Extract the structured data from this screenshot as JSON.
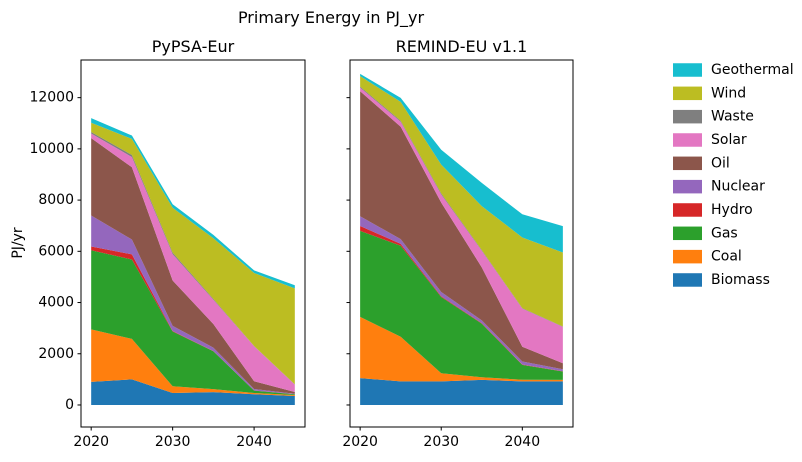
{
  "title": "Primary Energy in PJ_yr",
  "ylabel": "PJ/yr",
  "legend": {
    "entries": [
      {
        "label": "Geothermal",
        "color": "#17becf"
      },
      {
        "label": "Wind",
        "color": "#bcbd22"
      },
      {
        "label": "Waste",
        "color": "#7f7f7f"
      },
      {
        "label": "Solar",
        "color": "#e377c2"
      },
      {
        "label": "Oil",
        "color": "#8c564b"
      },
      {
        "label": "Nuclear",
        "color": "#9467bd"
      },
      {
        "label": "Hydro",
        "color": "#d62728"
      },
      {
        "label": "Gas",
        "color": "#2ca02c"
      },
      {
        "label": "Coal",
        "color": "#ff7f0e"
      },
      {
        "label": "Biomass",
        "color": "#1f77b4"
      }
    ]
  },
  "chart_data": [
    {
      "type": "area",
      "stacked": true,
      "title": "PyPSA-Eur",
      "x": [
        2020,
        2025,
        2030,
        2035,
        2040,
        2045
      ],
      "xlim": [
        2018.75,
        2046.25
      ],
      "ylim": [
        -860,
        13470
      ],
      "xticks": [
        2020,
        2030,
        2040
      ],
      "yticks": [
        0,
        2000,
        4000,
        6000,
        8000,
        10000,
        12000
      ],
      "show_ytick_labels": true,
      "series": [
        {
          "name": "Biomass",
          "color": "#1f77b4",
          "values": [
            900,
            1000,
            470,
            500,
            420,
            350
          ]
        },
        {
          "name": "Coal",
          "color": "#ff7f0e",
          "values": [
            2050,
            1580,
            260,
            120,
            50,
            40
          ]
        },
        {
          "name": "Gas",
          "color": "#2ca02c",
          "values": [
            3090,
            3100,
            2140,
            1480,
            90,
            30
          ]
        },
        {
          "name": "Hydro",
          "color": "#d62728",
          "values": [
            150,
            200,
            20,
            10,
            5,
            5
          ]
        },
        {
          "name": "Nuclear",
          "color": "#9467bd",
          "values": [
            1210,
            580,
            200,
            130,
            60,
            15
          ]
        },
        {
          "name": "Oil",
          "color": "#8c564b",
          "values": [
            3020,
            2820,
            1770,
            920,
            300,
            65
          ]
        },
        {
          "name": "Solar",
          "color": "#e377c2",
          "values": [
            180,
            400,
            1030,
            950,
            1370,
            290
          ]
        },
        {
          "name": "Waste",
          "color": "#7f7f7f",
          "values": [
            60,
            80,
            60,
            35,
            10,
            10
          ]
        },
        {
          "name": "Wind",
          "color": "#bcbd22",
          "values": [
            360,
            630,
            1750,
            2365,
            2850,
            3750
          ]
        },
        {
          "name": "Geothermal",
          "color": "#17becf",
          "values": [
            180,
            130,
            140,
            130,
            100,
            120
          ]
        }
      ]
    },
    {
      "type": "area",
      "stacked": true,
      "title": "REMIND-EU v1.1",
      "x": [
        2020,
        2025,
        2030,
        2035,
        2040,
        2045
      ],
      "xlim": [
        2018.75,
        2046.25
      ],
      "ylim": [
        -860,
        13470
      ],
      "xticks": [
        2020,
        2030,
        2040
      ],
      "yticks": [
        0,
        2000,
        4000,
        6000,
        8000,
        10000,
        12000
      ],
      "show_ytick_labels": false,
      "series": [
        {
          "name": "Biomass",
          "color": "#1f77b4",
          "values": [
            1050,
            920,
            920,
            980,
            920,
            920
          ]
        },
        {
          "name": "Coal",
          "color": "#ff7f0e",
          "values": [
            2390,
            1745,
            320,
            105,
            65,
            60
          ]
        },
        {
          "name": "Gas",
          "color": "#2ca02c",
          "values": [
            3360,
            3550,
            2975,
            2090,
            580,
            325
          ]
        },
        {
          "name": "Hydro",
          "color": "#d62728",
          "values": [
            190,
            75,
            30,
            20,
            15,
            10
          ]
        },
        {
          "name": "Nuclear",
          "color": "#9467bd",
          "values": [
            380,
            185,
            165,
            110,
            115,
            80
          ]
        },
        {
          "name": "Oil",
          "color": "#8c564b",
          "values": [
            4880,
            4390,
            3490,
            2070,
            580,
            235
          ]
        },
        {
          "name": "Solar",
          "color": "#e377c2",
          "values": [
            140,
            195,
            320,
            645,
            1485,
            1420
          ]
        },
        {
          "name": "Waste",
          "color": "#7f7f7f",
          "values": [
            40,
            40,
            40,
            30,
            20,
            15
          ]
        },
        {
          "name": "Wind",
          "color": "#bcbd22",
          "values": [
            410,
            735,
            1125,
            1715,
            2760,
            2890
          ]
        },
        {
          "name": "Geothermal",
          "color": "#17becf",
          "values": [
            90,
            155,
            580,
            905,
            905,
            1030
          ]
        }
      ]
    }
  ]
}
